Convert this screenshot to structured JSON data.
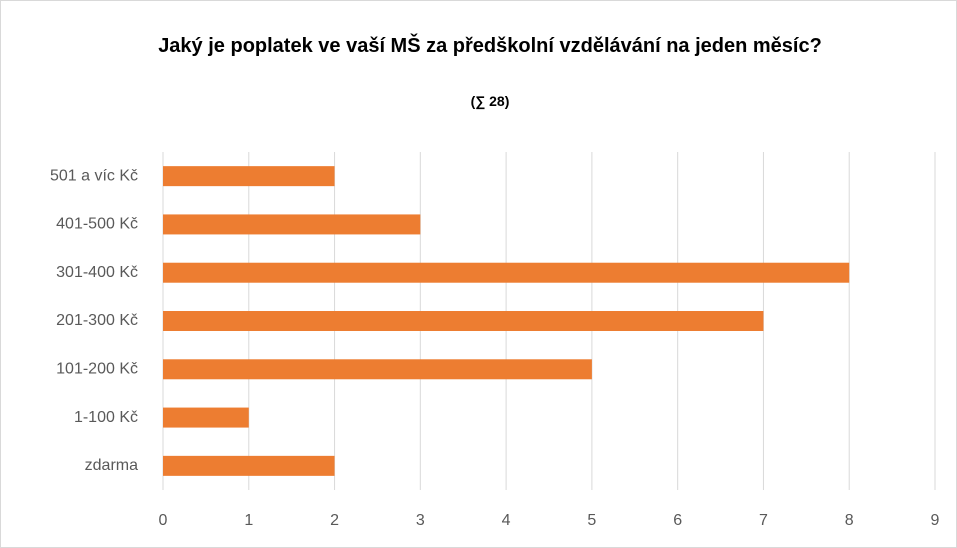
{
  "chart_data": {
    "type": "bar",
    "orientation": "horizontal",
    "title": "Jaký je poplatek ve vaší MŠ za předškolní vzdělávání na jeden měsíc?",
    "subtitle": "(∑ 28)",
    "categories": [
      "501 a víc Kč",
      "401-500 Kč",
      "301-400 Kč",
      "201-300 Kč",
      "101-200 Kč",
      "1-100 Kč",
      "zdarma"
    ],
    "values": [
      2,
      3,
      8,
      7,
      5,
      1,
      2
    ],
    "color": "#ed7d31",
    "xlim": [
      0,
      9
    ],
    "xticks": [
      0,
      1,
      2,
      3,
      4,
      5,
      6,
      7,
      8,
      9
    ],
    "grid": true
  }
}
